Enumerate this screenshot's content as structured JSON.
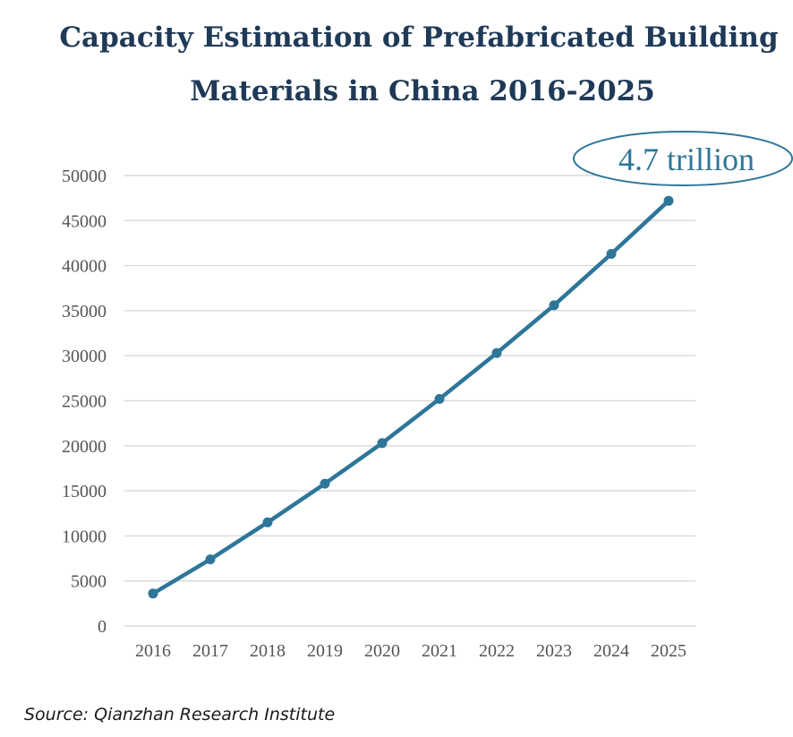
{
  "chart_data": {
    "type": "line",
    "title_lines": [
      "Capacity Estimation of Prefabricated Building",
      "Materials in China 2016-2025"
    ],
    "categories": [
      "2016",
      "2017",
      "2018",
      "2019",
      "2020",
      "2021",
      "2022",
      "2023",
      "2024",
      "2025"
    ],
    "series": [
      {
        "values": [
          3600,
          7400,
          11500,
          15800,
          20300,
          25200,
          30300,
          35600,
          41300,
          47200
        ],
        "color": "#2e7699"
      }
    ],
    "y_ticks": [
      "0",
      "5000",
      "10000",
      "15000",
      "20000",
      "25000",
      "30000",
      "35000",
      "40000",
      "45000",
      "50000"
    ],
    "ylim": [
      0,
      50000
    ],
    "grid": true,
    "annotation": {
      "text": "4.7 trillion",
      "target_category": "2025"
    },
    "source": "Source: Qianzhan Research Institute"
  }
}
